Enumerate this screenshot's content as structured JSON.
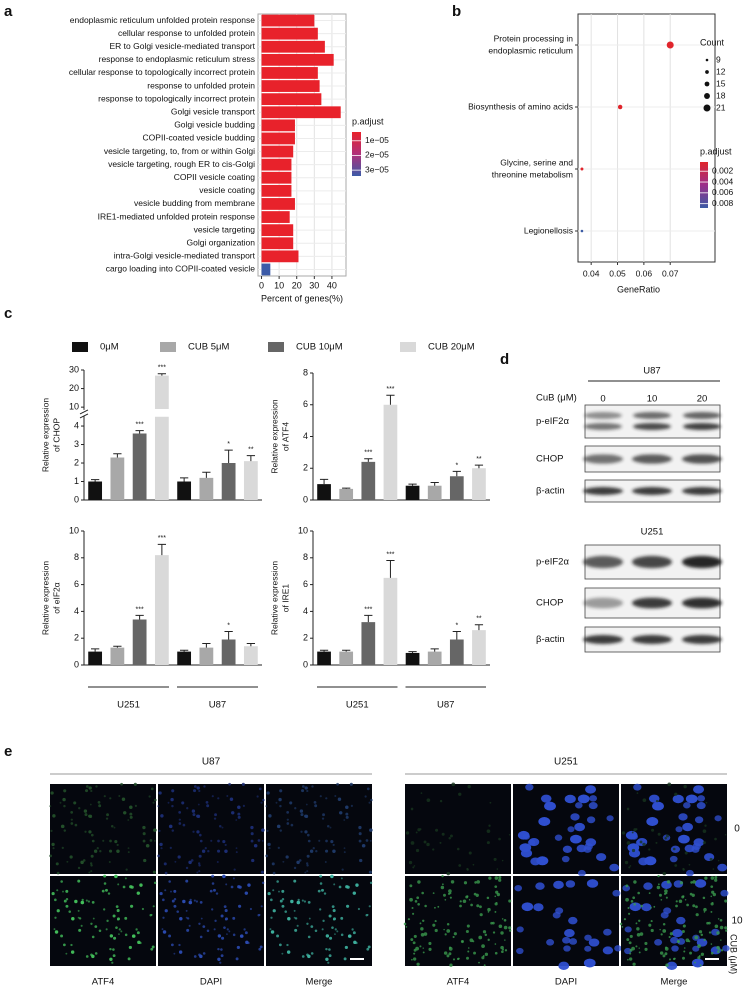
{
  "panels": [
    "a",
    "b",
    "c",
    "d",
    "e"
  ],
  "chart_data": [
    {
      "type": "hbar",
      "categories": [
        "endoplasmic reticulum unfolded protein response",
        "cellular response to unfolded protein",
        "ER to Golgi vesicle-mediated transport",
        "response to endoplasmic reticulum stress",
        "cellular response to topologically incorrect protein",
        "response to unfolded protein",
        "response to topologically incorrect protein",
        "Golgi vesicle transport",
        "Golgi vesicle budding",
        "COPII-coated vesicle budding",
        "vesicle targeting, to, from or within Golgi",
        "vesicle targeting, rough ER to cis-Golgi",
        "COPII vesicle coating",
        "vesicle coating",
        "vesicle budding from membrane",
        "IRE1-mediated unfolded protein response",
        "vesicle targeting",
        "Golgi organization",
        "intra-Golgi vesicle-mediated transport",
        "cargo loading into COPII-coated vesicle"
      ],
      "values": [
        30,
        32,
        36,
        41,
        32,
        33,
        34,
        45,
        19,
        19,
        18,
        17,
        17,
        17,
        19,
        16,
        18,
        18,
        21,
        5
      ],
      "colors": [
        "#e8222b",
        "#e8222b",
        "#e8222b",
        "#e8222b",
        "#e8222b",
        "#e8222b",
        "#e8222b",
        "#e8222b",
        "#e8222b",
        "#e8222b",
        "#e8222b",
        "#e8222b",
        "#e8222b",
        "#e8222b",
        "#e8222b",
        "#e8222b",
        "#e8222b",
        "#e8222b",
        "#e8222b",
        "#3c5ba8"
      ],
      "xlabel": "Percent of genes(%)",
      "xlim": [
        -2,
        48
      ],
      "xticks": [
        0,
        10,
        20,
        30,
        40
      ],
      "grid": true,
      "colorbar": {
        "title": "p.adjust",
        "colors": [
          "#e8222b",
          "#b0307a",
          "#3c5ba8"
        ],
        "lim": [
          4e-06,
          3.4e-05
        ],
        "ticks": [
          {
            "value": 1e-05,
            "label": "1e−05"
          },
          {
            "value": 2e-05,
            "label": "2e−05"
          },
          {
            "value": 3e-05,
            "label": "3e−05"
          }
        ]
      }
    },
    {
      "type": "dot",
      "categories": [
        [
          "Protein processing in",
          "endoplasmic reticulum"
        ],
        [
          "Biosynthesis of amino acids"
        ],
        [
          "Glycine, serine and",
          "threonine metabolism"
        ],
        [
          "Legionellosis"
        ]
      ],
      "values": [
        0.07,
        0.051,
        0.0365,
        0.0365
      ],
      "sizes": [
        21,
        14,
        10,
        9
      ],
      "colors": [
        "#e0252c",
        "#e0252c",
        "#e0252c",
        "#3b5ba5"
      ],
      "xlabel": "GeneRatio",
      "xlim": [
        0.035,
        0.087
      ],
      "xticks": [
        0.04,
        0.05,
        0.06,
        0.07
      ],
      "grid": true,
      "size_legend": {
        "title": "Count",
        "values": [
          9,
          12,
          15,
          18,
          21
        ]
      },
      "colorbar": {
        "title": "p.adjust",
        "colors": [
          "#e0252c",
          "#9b2f8a",
          "#3b5ba5"
        ],
        "lim": [
          0.0003,
          0.0088
        ],
        "ticks": [
          0.002,
          0.004,
          0.006,
          0.008
        ]
      }
    },
    {
      "type": "grouped_bar",
      "ylabel": [
        "Relative expression",
        "of CHOP"
      ],
      "categories": [
        null,
        null
      ],
      "ylim": [
        0,
        30
      ],
      "ybreak": [
        4.5,
        9
      ],
      "yticks": [
        0,
        1,
        2,
        3,
        4,
        10,
        20,
        30
      ],
      "series": [
        {
          "name": "0μM",
          "color": "#111111",
          "values": [
            1.0,
            1.0
          ],
          "errors": [
            0.1,
            0.2
          ],
          "significance": [
            null,
            null
          ]
        },
        {
          "name": "CUB  5μM",
          "color": "#a8a8a8",
          "values": [
            2.3,
            1.2
          ],
          "errors": [
            0.2,
            0.3
          ],
          "significance": [
            null,
            null
          ]
        },
        {
          "name": "CUB  10μM",
          "color": "#666666",
          "values": [
            3.6,
            2.0
          ],
          "errors": [
            0.15,
            0.7
          ],
          "significance": [
            "***",
            "*"
          ]
        },
        {
          "name": "CUB  20μM",
          "color": "#d9d9d9",
          "values": [
            27,
            2.1
          ],
          "errors": [
            1,
            0.3
          ],
          "significance": [
            "***",
            "**"
          ]
        }
      ]
    },
    {
      "type": "grouped_bar",
      "ylabel": [
        "Relative expression",
        "of ATF4"
      ],
      "categories": [
        null,
        null
      ],
      "ylim": [
        0,
        8
      ],
      "yticks": [
        0,
        2,
        4,
        6,
        8
      ],
      "series": [
        {
          "color": "#111111",
          "values": [
            1.0,
            0.9
          ],
          "errors": [
            0.3,
            0.1
          ],
          "significance": [
            null,
            null
          ]
        },
        {
          "color": "#a8a8a8",
          "values": [
            0.7,
            0.9
          ],
          "errors": [
            0.05,
            0.2
          ],
          "significance": [
            null,
            null
          ]
        },
        {
          "color": "#666666",
          "values": [
            2.4,
            1.5
          ],
          "errors": [
            0.2,
            0.3
          ],
          "significance": [
            "***",
            "*"
          ]
        },
        {
          "color": "#d9d9d9",
          "values": [
            6.0,
            2.0
          ],
          "errors": [
            0.6,
            0.2
          ],
          "significance": [
            "***",
            "**"
          ]
        }
      ]
    },
    {
      "type": "grouped_bar",
      "ylabel": [
        "Relative expression",
        "of eIF2α"
      ],
      "categories": [
        "U251",
        "U87"
      ],
      "ylim": [
        0,
        10
      ],
      "yticks": [
        0,
        2,
        4,
        6,
        8,
        10
      ],
      "series": [
        {
          "color": "#111111",
          "values": [
            1.0,
            1.0
          ],
          "errors": [
            0.2,
            0.1
          ],
          "significance": [
            null,
            null
          ]
        },
        {
          "color": "#a8a8a8",
          "values": [
            1.3,
            1.3
          ],
          "errors": [
            0.1,
            0.3
          ],
          "significance": [
            null,
            null
          ]
        },
        {
          "color": "#666666",
          "values": [
            3.4,
            1.9
          ],
          "errors": [
            0.3,
            0.6
          ],
          "significance": [
            "***",
            "*"
          ]
        },
        {
          "color": "#d9d9d9",
          "values": [
            8.2,
            1.4
          ],
          "errors": [
            0.8,
            0.2
          ],
          "significance": [
            "***",
            null
          ]
        }
      ]
    },
    {
      "type": "grouped_bar",
      "ylabel": [
        "Relative expression",
        "of IRE1"
      ],
      "categories": [
        "U251",
        "U87"
      ],
      "ylim": [
        0,
        10
      ],
      "yticks": [
        0,
        2,
        4,
        6,
        8,
        10
      ],
      "series": [
        {
          "color": "#111111",
          "values": [
            1.0,
            0.9
          ],
          "errors": [
            0.1,
            0.1
          ],
          "significance": [
            null,
            null
          ]
        },
        {
          "color": "#a8a8a8",
          "values": [
            1.0,
            1.0
          ],
          "errors": [
            0.1,
            0.2
          ],
          "significance": [
            null,
            null
          ]
        },
        {
          "color": "#666666",
          "values": [
            3.2,
            1.9
          ],
          "errors": [
            0.5,
            0.6
          ],
          "significance": [
            "***",
            "*"
          ]
        },
        {
          "color": "#d9d9d9",
          "values": [
            6.5,
            2.6
          ],
          "errors": [
            1.3,
            0.4
          ],
          "significance": [
            "***",
            "**"
          ]
        }
      ]
    }
  ],
  "western_blot": {
    "groups": [
      {
        "title": "U87",
        "dose_label": "CuB (μM)",
        "doses": [
          "0",
          "10",
          "20"
        ],
        "rows": [
          "p-eIF2α",
          "CHOP",
          "β-actin"
        ]
      },
      {
        "title": "U251",
        "rows": [
          "p-eIF2α",
          "CHOP",
          "β-actin"
        ]
      }
    ]
  },
  "microscopy": {
    "groups": [
      {
        "title": "U87",
        "channels": [
          "ATF4",
          "DAPI",
          "Merge"
        ]
      },
      {
        "title": "U251",
        "channels": [
          "ATF4",
          "DAPI",
          "Merge"
        ]
      }
    ],
    "doses": [
      "0",
      "10"
    ],
    "dose_label": "CUB (μM)"
  }
}
